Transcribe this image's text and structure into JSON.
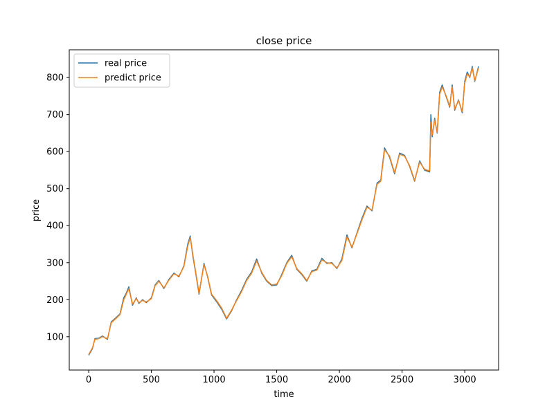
{
  "chart_data": {
    "type": "line",
    "title": "close price",
    "xlabel": "time",
    "ylabel": "price",
    "xlim": [
      -155,
      3270
    ],
    "ylim": [
      10,
      875
    ],
    "xticks": [
      0,
      500,
      1000,
      1500,
      2000,
      2500,
      3000
    ],
    "yticks": [
      100,
      200,
      300,
      400,
      500,
      600,
      700,
      800
    ],
    "legend": "upper-left",
    "grid": false,
    "series": [
      {
        "name": "real price",
        "color": "#1f77b4",
        "x": [
          0,
          30,
          50,
          80,
          110,
          150,
          180,
          220,
          250,
          280,
          300,
          320,
          350,
          380,
          400,
          430,
          460,
          500,
          530,
          560,
          600,
          640,
          680,
          720,
          760,
          790,
          810,
          830,
          850,
          880,
          920,
          950,
          980,
          1020,
          1060,
          1100,
          1140,
          1180,
          1220,
          1260,
          1300,
          1340,
          1380,
          1420,
          1460,
          1500,
          1540,
          1580,
          1620,
          1660,
          1700,
          1740,
          1780,
          1820,
          1860,
          1900,
          1940,
          1980,
          2020,
          2060,
          2100,
          2140,
          2180,
          2220,
          2260,
          2300,
          2330,
          2360,
          2400,
          2440,
          2480,
          2520,
          2560,
          2600,
          2640,
          2680,
          2720,
          2730,
          2740,
          2760,
          2780,
          2800,
          2820,
          2850,
          2880,
          2900,
          2920,
          2950,
          2980,
          3000,
          3020,
          3040,
          3060,
          3080,
          3110
        ],
        "y": [
          50,
          68,
          95,
          96,
          102,
          93,
          140,
          152,
          162,
          205,
          218,
          235,
          185,
          205,
          190,
          200,
          192,
          205,
          240,
          252,
          230,
          255,
          272,
          262,
          292,
          350,
          372,
          320,
          280,
          215,
          298,
          260,
          213,
          195,
          175,
          148,
          170,
          200,
          225,
          255,
          275,
          310,
          272,
          250,
          238,
          240,
          268,
          300,
          320,
          282,
          268,
          250,
          278,
          282,
          312,
          298,
          300,
          284,
          310,
          375,
          340,
          380,
          420,
          453,
          440,
          515,
          523,
          610,
          585,
          540,
          596,
          590,
          560,
          520,
          575,
          550,
          545,
          700,
          640,
          690,
          650,
          760,
          780,
          750,
          720,
          780,
          712,
          740,
          705,
          790,
          815,
          800,
          830,
          790,
          830
        ]
      },
      {
        "name": "predict price",
        "color": "#ff7f0e",
        "x": [
          0,
          30,
          50,
          80,
          110,
          150,
          180,
          220,
          250,
          280,
          300,
          320,
          350,
          380,
          400,
          430,
          460,
          500,
          530,
          560,
          600,
          640,
          680,
          720,
          760,
          790,
          810,
          830,
          850,
          880,
          920,
          950,
          980,
          1020,
          1060,
          1100,
          1140,
          1180,
          1220,
          1260,
          1300,
          1340,
          1380,
          1420,
          1460,
          1500,
          1540,
          1580,
          1620,
          1660,
          1700,
          1740,
          1780,
          1820,
          1860,
          1900,
          1940,
          1980,
          2020,
          2060,
          2100,
          2140,
          2180,
          2220,
          2260,
          2300,
          2330,
          2360,
          2400,
          2440,
          2480,
          2520,
          2560,
          2600,
          2640,
          2680,
          2720,
          2730,
          2740,
          2760,
          2780,
          2800,
          2820,
          2850,
          2880,
          2900,
          2920,
          2950,
          2980,
          3000,
          3020,
          3040,
          3060,
          3080,
          3110
        ],
        "y": [
          52,
          70,
          93,
          95,
          100,
          95,
          138,
          150,
          160,
          200,
          215,
          230,
          188,
          203,
          192,
          198,
          194,
          203,
          238,
          250,
          232,
          253,
          270,
          264,
          290,
          345,
          368,
          324,
          283,
          218,
          295,
          262,
          215,
          198,
          178,
          150,
          172,
          198,
          222,
          252,
          272,
          305,
          274,
          252,
          240,
          242,
          265,
          298,
          316,
          284,
          270,
          252,
          276,
          280,
          308,
          300,
          298,
          286,
          306,
          370,
          342,
          378,
          416,
          450,
          442,
          512,
          520,
          605,
          588,
          543,
          593,
          588,
          562,
          522,
          572,
          552,
          548,
          680,
          645,
          686,
          652,
          755,
          775,
          752,
          722,
          775,
          715,
          738,
          708,
          785,
          810,
          802,
          826,
          792,
          826
        ]
      }
    ]
  }
}
